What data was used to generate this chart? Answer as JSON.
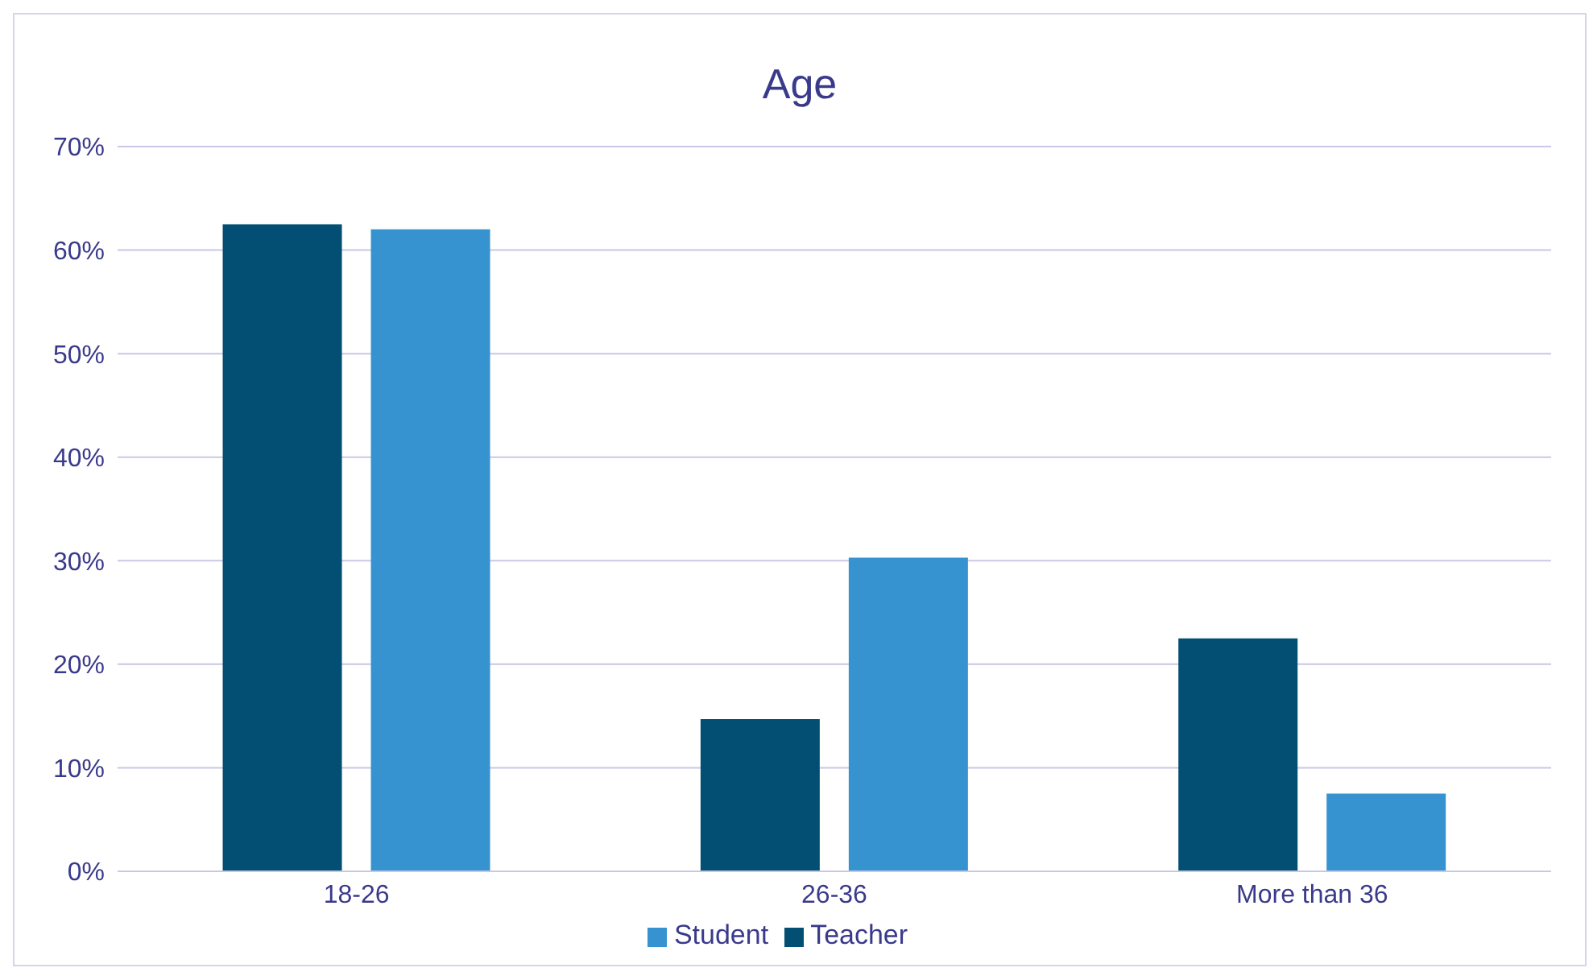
{
  "chart_data": {
    "type": "bar",
    "title": "Age",
    "categories": [
      "18-26",
      "26-36",
      "More than 36"
    ],
    "series": [
      {
        "name": "Teacher",
        "color": "#034f73",
        "values": [
          62.5,
          14.7,
          22.5
        ]
      },
      {
        "name": "Student",
        "color": "#3792d0",
        "values": [
          62,
          30.3,
          7.5
        ]
      }
    ],
    "ylim": [
      0,
      70
    ],
    "yticks": [
      {
        "value": 0,
        "label": "0%"
      },
      {
        "value": 10,
        "label": "10%"
      },
      {
        "value": 20,
        "label": "20%"
      },
      {
        "value": 30,
        "label": "30%"
      },
      {
        "value": 40,
        "label": "40%"
      },
      {
        "value": 50,
        "label": "50%"
      },
      {
        "value": 60,
        "label": "60%"
      },
      {
        "value": 70,
        "label": "70%"
      }
    ],
    "grid": "y",
    "legend": "bottom"
  }
}
